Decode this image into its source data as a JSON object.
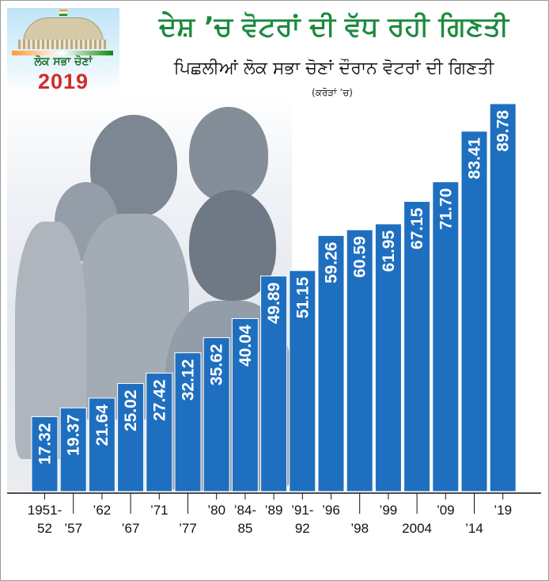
{
  "header": {
    "logo_text": "ਲੋਕ ਸਭਾ ਚੋਣਾਂ",
    "logo_year": "2019",
    "title": "ਦੇਸ਼ ’ਚ ਵੋਟਰਾਂ ਦੀ ਵੱਧ ਰਹੀ ਗਿਣਤੀ",
    "subtitle": "ਪਿਛਲੀਆਂ ਲੋਕ ਸਭਾ ਚੋਣਾਂ ਦੌਰਾਨ ਵੋਟਰਾਂ ਦੀ ਗਿਣਤੀ",
    "unit": "(ਕਰੋੜਾਂ ’ਚ)"
  },
  "colors": {
    "bar": "#1f6fc0",
    "title": "#1c8a3c",
    "year": "#d32b2b"
  },
  "chart_data": {
    "type": "bar",
    "title": "ਦੇਸ਼ ’ਚ ਵੋਟਰਾਂ ਦੀ ਵੱਧ ਰਹੀ ਗਿਣਤੀ",
    "subtitle": "ਪਿਛਲੀਆਂ ਲੋਕ ਸਭਾ ਚੋਣਾਂ ਦੌਰਾਨ ਵੋਟਰਾਂ ਦੀ ਗਿਣਤੀ",
    "unit": "(ਕਰੋੜਾਂ ’ਚ)",
    "categories": [
      [
        "1951-",
        "52"
      ],
      [
        "",
        "’57"
      ],
      [
        "’62",
        ""
      ],
      [
        "",
        "’67"
      ],
      [
        "’71",
        ""
      ],
      [
        "",
        "’77"
      ],
      [
        "’80",
        ""
      ],
      [
        "’84-",
        "85"
      ],
      [
        "’89",
        ""
      ],
      [
        "’91-",
        "92"
      ],
      [
        "’96",
        ""
      ],
      [
        "",
        "’98"
      ],
      [
        "’99",
        ""
      ],
      [
        "",
        "2004"
      ],
      [
        "’09",
        ""
      ],
      [
        "",
        "’14"
      ],
      [
        "’19",
        ""
      ]
    ],
    "values": [
      17.32,
      19.37,
      21.64,
      25.02,
      27.42,
      32.12,
      35.62,
      40.04,
      49.89,
      51.15,
      59.26,
      60.59,
      61.95,
      67.15,
      71.7,
      83.41,
      89.78
    ],
    "value_labels": [
      "17.32",
      "19.37",
      "21.64",
      "25.02",
      "27.42",
      "32.12",
      "35.62",
      "40.04",
      "49.89",
      "51.15",
      "59.26",
      "60.59",
      "61.95",
      "67.15",
      "71.70",
      "83.41",
      "89.78"
    ],
    "ylim": [
      0,
      100
    ],
    "grid": false,
    "legend": "none"
  }
}
